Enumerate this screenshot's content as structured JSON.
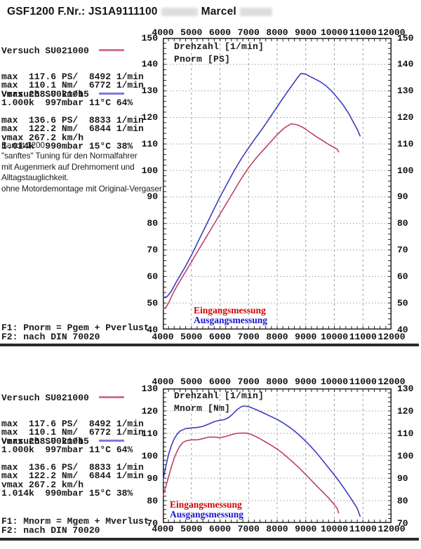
{
  "title": {
    "part1": "GSF1200 F.Nr.: JS1A9111100",
    "part2": "Marcel"
  },
  "runs": [
    {
      "name": "Versuch SU021000",
      "swatch_color": "#d4708e",
      "stats": "max  117.6 PS/  8492 1/min\nmax  110.1 Nm/  6772 1/min\nvmax 268.0 km/h\n1.000k  997mbar 11°C 64%"
    },
    {
      "name": "Versuch SU021015",
      "swatch_color": "#7b7bd8",
      "stats": "max  136.6 PS/  8833 1/min\nmax  122.2 Nm/  6844 1/min\nvmax 267.2 km/h\n1.014k  990mbar 15°C 38%"
    }
  ],
  "note": {
    "text": "Bandit 1200:\n\"sanftes\" Tuning für den Normalfahrer\nmit Augenmerk auf Drehmoment und\nAlltagstauglichkeit.\nohne Motordemontage mit Original-Vergaser"
  },
  "chart_data": [
    {
      "type": "line",
      "xlabel": "Drehzahl [1/min]",
      "ylabel": "Pnorm [PS]",
      "xlim": [
        4000,
        12000
      ],
      "ylim": [
        40,
        150
      ],
      "xtick": 1000,
      "ytick": 10,
      "xminor": 200,
      "yminor": 2,
      "grid": true,
      "footer": "F1: Pnorm = Pgem + Pverlust\nF2: nach DIN 70020",
      "legend": [
        {
          "label": "Eingangsmessung",
          "color": "#d40000"
        },
        {
          "label": "Ausgangsmessung",
          "color": "#1414cc"
        }
      ],
      "series": [
        {
          "name": "Eingangsmessung",
          "color": "#bf3f62",
          "points": [
            [
              4000,
              48
            ],
            [
              4100,
              48.2
            ],
            [
              4200,
              50
            ],
            [
              4350,
              53.5
            ],
            [
              4500,
              56.5
            ],
            [
              4750,
              61
            ],
            [
              5000,
              65.5
            ],
            [
              5250,
              70
            ],
            [
              5500,
              74.5
            ],
            [
              5750,
              79
            ],
            [
              6000,
              83.5
            ],
            [
              6250,
              88
            ],
            [
              6500,
              92.5
            ],
            [
              6750,
              97
            ],
            [
              7000,
              101
            ],
            [
              7250,
              104.5
            ],
            [
              7500,
              107.5
            ],
            [
              7750,
              110.5
            ],
            [
              8000,
              113.5
            ],
            [
              8250,
              116
            ],
            [
              8492,
              117.6
            ],
            [
              8700,
              117.2
            ],
            [
              8900,
              116.2
            ],
            [
              9000,
              115.5
            ],
            [
              9200,
              114
            ],
            [
              9400,
              112.5
            ],
            [
              9600,
              111.2
            ],
            [
              9800,
              109.8
            ],
            [
              10000,
              108.6
            ],
            [
              10100,
              108
            ],
            [
              10150,
              107
            ]
          ]
        },
        {
          "name": "Ausgangsmessung",
          "color": "#3c3cbe",
          "points": [
            [
              4000,
              52
            ],
            [
              4150,
              52.4
            ],
            [
              4300,
              54.5
            ],
            [
              4500,
              58.5
            ],
            [
              4750,
              63
            ],
            [
              5000,
              68
            ],
            [
              5250,
              73.5
            ],
            [
              5500,
              79
            ],
            [
              5750,
              84.5
            ],
            [
              6000,
              90
            ],
            [
              6250,
              95
            ],
            [
              6500,
              100
            ],
            [
              6750,
              104.5
            ],
            [
              7000,
              108.5
            ],
            [
              7250,
              112.3
            ],
            [
              7500,
              116
            ],
            [
              7750,
              120
            ],
            [
              8000,
              124
            ],
            [
              8250,
              128
            ],
            [
              8500,
              131.8
            ],
            [
              8700,
              134.8
            ],
            [
              8833,
              136.6
            ],
            [
              9000,
              136.3
            ],
            [
              9150,
              135.4
            ],
            [
              9300,
              134.6
            ],
            [
              9500,
              133.5
            ],
            [
              9700,
              132
            ],
            [
              9900,
              130
            ],
            [
              10100,
              127.5
            ],
            [
              10300,
              124.8
            ],
            [
              10500,
              121.5
            ],
            [
              10700,
              117.5
            ],
            [
              10800,
              115.5
            ],
            [
              10900,
              113
            ]
          ]
        }
      ]
    },
    {
      "type": "line",
      "xlabel": "Drehzahl [1/min]",
      "ylabel": "Mnorm [Nm]",
      "xlim": [
        4000,
        12000
      ],
      "ylim": [
        70,
        130
      ],
      "xtick": 1000,
      "ytick": 10,
      "xminor": 200,
      "yminor": 2,
      "grid": true,
      "footer": "F1: Mnorm = Mgem + Mverlust\nF2: nach DIN 70020",
      "legend": [
        {
          "label": "Eingangsmessung",
          "color": "#d40000"
        },
        {
          "label": "Ausgangsmessung",
          "color": "#1414cc"
        }
      ],
      "series": [
        {
          "name": "Eingangsmessung",
          "color": "#bf3f62",
          "points": [
            [
              4000,
              82
            ],
            [
              4100,
              86
            ],
            [
              4200,
              90.5
            ],
            [
              4300,
              95
            ],
            [
              4400,
              99
            ],
            [
              4500,
              102
            ],
            [
              4600,
              104.3
            ],
            [
              4700,
              105.8
            ],
            [
              4800,
              106.6
            ],
            [
              5000,
              107.1
            ],
            [
              5200,
              107.1
            ],
            [
              5400,
              107.6
            ],
            [
              5600,
              108.3
            ],
            [
              5800,
              108.3
            ],
            [
              6000,
              108.1
            ],
            [
              6200,
              108.6
            ],
            [
              6400,
              109.4
            ],
            [
              6600,
              110
            ],
            [
              6772,
              110.1
            ],
            [
              6900,
              110.1
            ],
            [
              7000,
              109.9
            ],
            [
              7200,
              108.9
            ],
            [
              7400,
              107.6
            ],
            [
              7600,
              106.1
            ],
            [
              7800,
              104.6
            ],
            [
              8000,
              103
            ],
            [
              8200,
              101
            ],
            [
              8400,
              98.8
            ],
            [
              8600,
              96.6
            ],
            [
              8800,
              94.2
            ],
            [
              9000,
              91.6
            ],
            [
              9200,
              89
            ],
            [
              9400,
              86.3
            ],
            [
              9600,
              83.8
            ],
            [
              9800,
              81.2
            ],
            [
              10000,
              78.2
            ],
            [
              10100,
              76.5
            ],
            [
              10150,
              74.5
            ]
          ]
        },
        {
          "name": "Ausgangsmessung",
          "color": "#3c3cbe",
          "points": [
            [
              4000,
              88.5
            ],
            [
              4100,
              95
            ],
            [
              4200,
              100.5
            ],
            [
              4300,
              104.5
            ],
            [
              4400,
              107.6
            ],
            [
              4500,
              109.6
            ],
            [
              4600,
              111
            ],
            [
              4800,
              112.1
            ],
            [
              5000,
              112.4
            ],
            [
              5200,
              112.6
            ],
            [
              5400,
              113.1
            ],
            [
              5600,
              114.1
            ],
            [
              5800,
              115.2
            ],
            [
              6000,
              115.8
            ],
            [
              6150,
              116.1
            ],
            [
              6300,
              117
            ],
            [
              6450,
              118.6
            ],
            [
              6600,
              120.6
            ],
            [
              6750,
              121.9
            ],
            [
              6844,
              122.2
            ],
            [
              7000,
              121.9
            ],
            [
              7200,
              120.9
            ],
            [
              7400,
              119.8
            ],
            [
              7600,
              118.6
            ],
            [
              7800,
              117.4
            ],
            [
              8000,
              116.2
            ],
            [
              8200,
              114.7
            ],
            [
              8400,
              113
            ],
            [
              8600,
              111.1
            ],
            [
              8800,
              108.9
            ],
            [
              9000,
              106.4
            ],
            [
              9200,
              103.8
            ],
            [
              9400,
              100.9
            ],
            [
              9600,
              97.8
            ],
            [
              9800,
              94.6
            ],
            [
              10000,
              91.4
            ],
            [
              10200,
              88
            ],
            [
              10400,
              84.4
            ],
            [
              10600,
              80.6
            ],
            [
              10800,
              76.6
            ],
            [
              10900,
              73
            ]
          ]
        }
      ]
    }
  ]
}
